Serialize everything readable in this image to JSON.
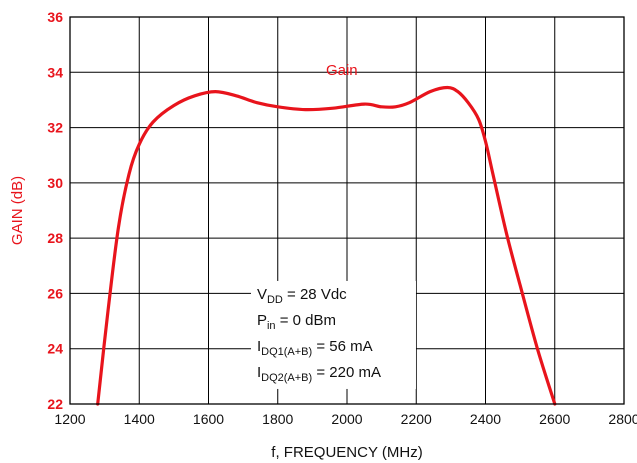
{
  "chart_data": {
    "type": "line",
    "xlabel": "f, FREQUENCY (MHz)",
    "ylabel": "GAIN (dB)",
    "xlim": [
      1200,
      2800
    ],
    "ylim": [
      22,
      36
    ],
    "x_ticks": [
      1200,
      1400,
      1600,
      1800,
      2000,
      2200,
      2400,
      2600,
      2800
    ],
    "y_ticks": [
      22,
      24,
      26,
      28,
      30,
      32,
      34,
      36
    ],
    "grid": true,
    "series": [
      {
        "name": "Gain",
        "color": "#e8141c",
        "x": [
          1280,
          1310,
          1340,
          1370,
          1400,
          1440,
          1500,
          1560,
          1620,
          1680,
          1740,
          1800,
          1880,
          1960,
          2050,
          2100,
          2140,
          2180,
          2240,
          2290,
          2320,
          2350,
          2380,
          2400,
          2420,
          2460,
          2500,
          2550,
          2600
        ],
        "y": [
          22.0,
          25.4,
          28.4,
          30.3,
          31.4,
          32.2,
          32.8,
          33.15,
          33.3,
          33.15,
          32.9,
          32.75,
          32.65,
          32.7,
          32.85,
          32.75,
          32.75,
          32.9,
          33.3,
          33.45,
          33.3,
          32.9,
          32.3,
          31.5,
          30.4,
          28.2,
          26.3,
          24.0,
          22.0
        ]
      }
    ],
    "annotation": {
      "lines": [
        {
          "main": "V",
          "sub": "DD",
          "rest": " = 28 Vdc"
        },
        {
          "main": "P",
          "sub": "in",
          "rest": " = 0 dBm"
        },
        {
          "main": "I",
          "sub": "DQ1(A+B)",
          "rest": " = 56 mA"
        },
        {
          "main": "I",
          "sub": "DQ2(A+B)",
          "rest": " = 220 mA"
        }
      ]
    }
  }
}
